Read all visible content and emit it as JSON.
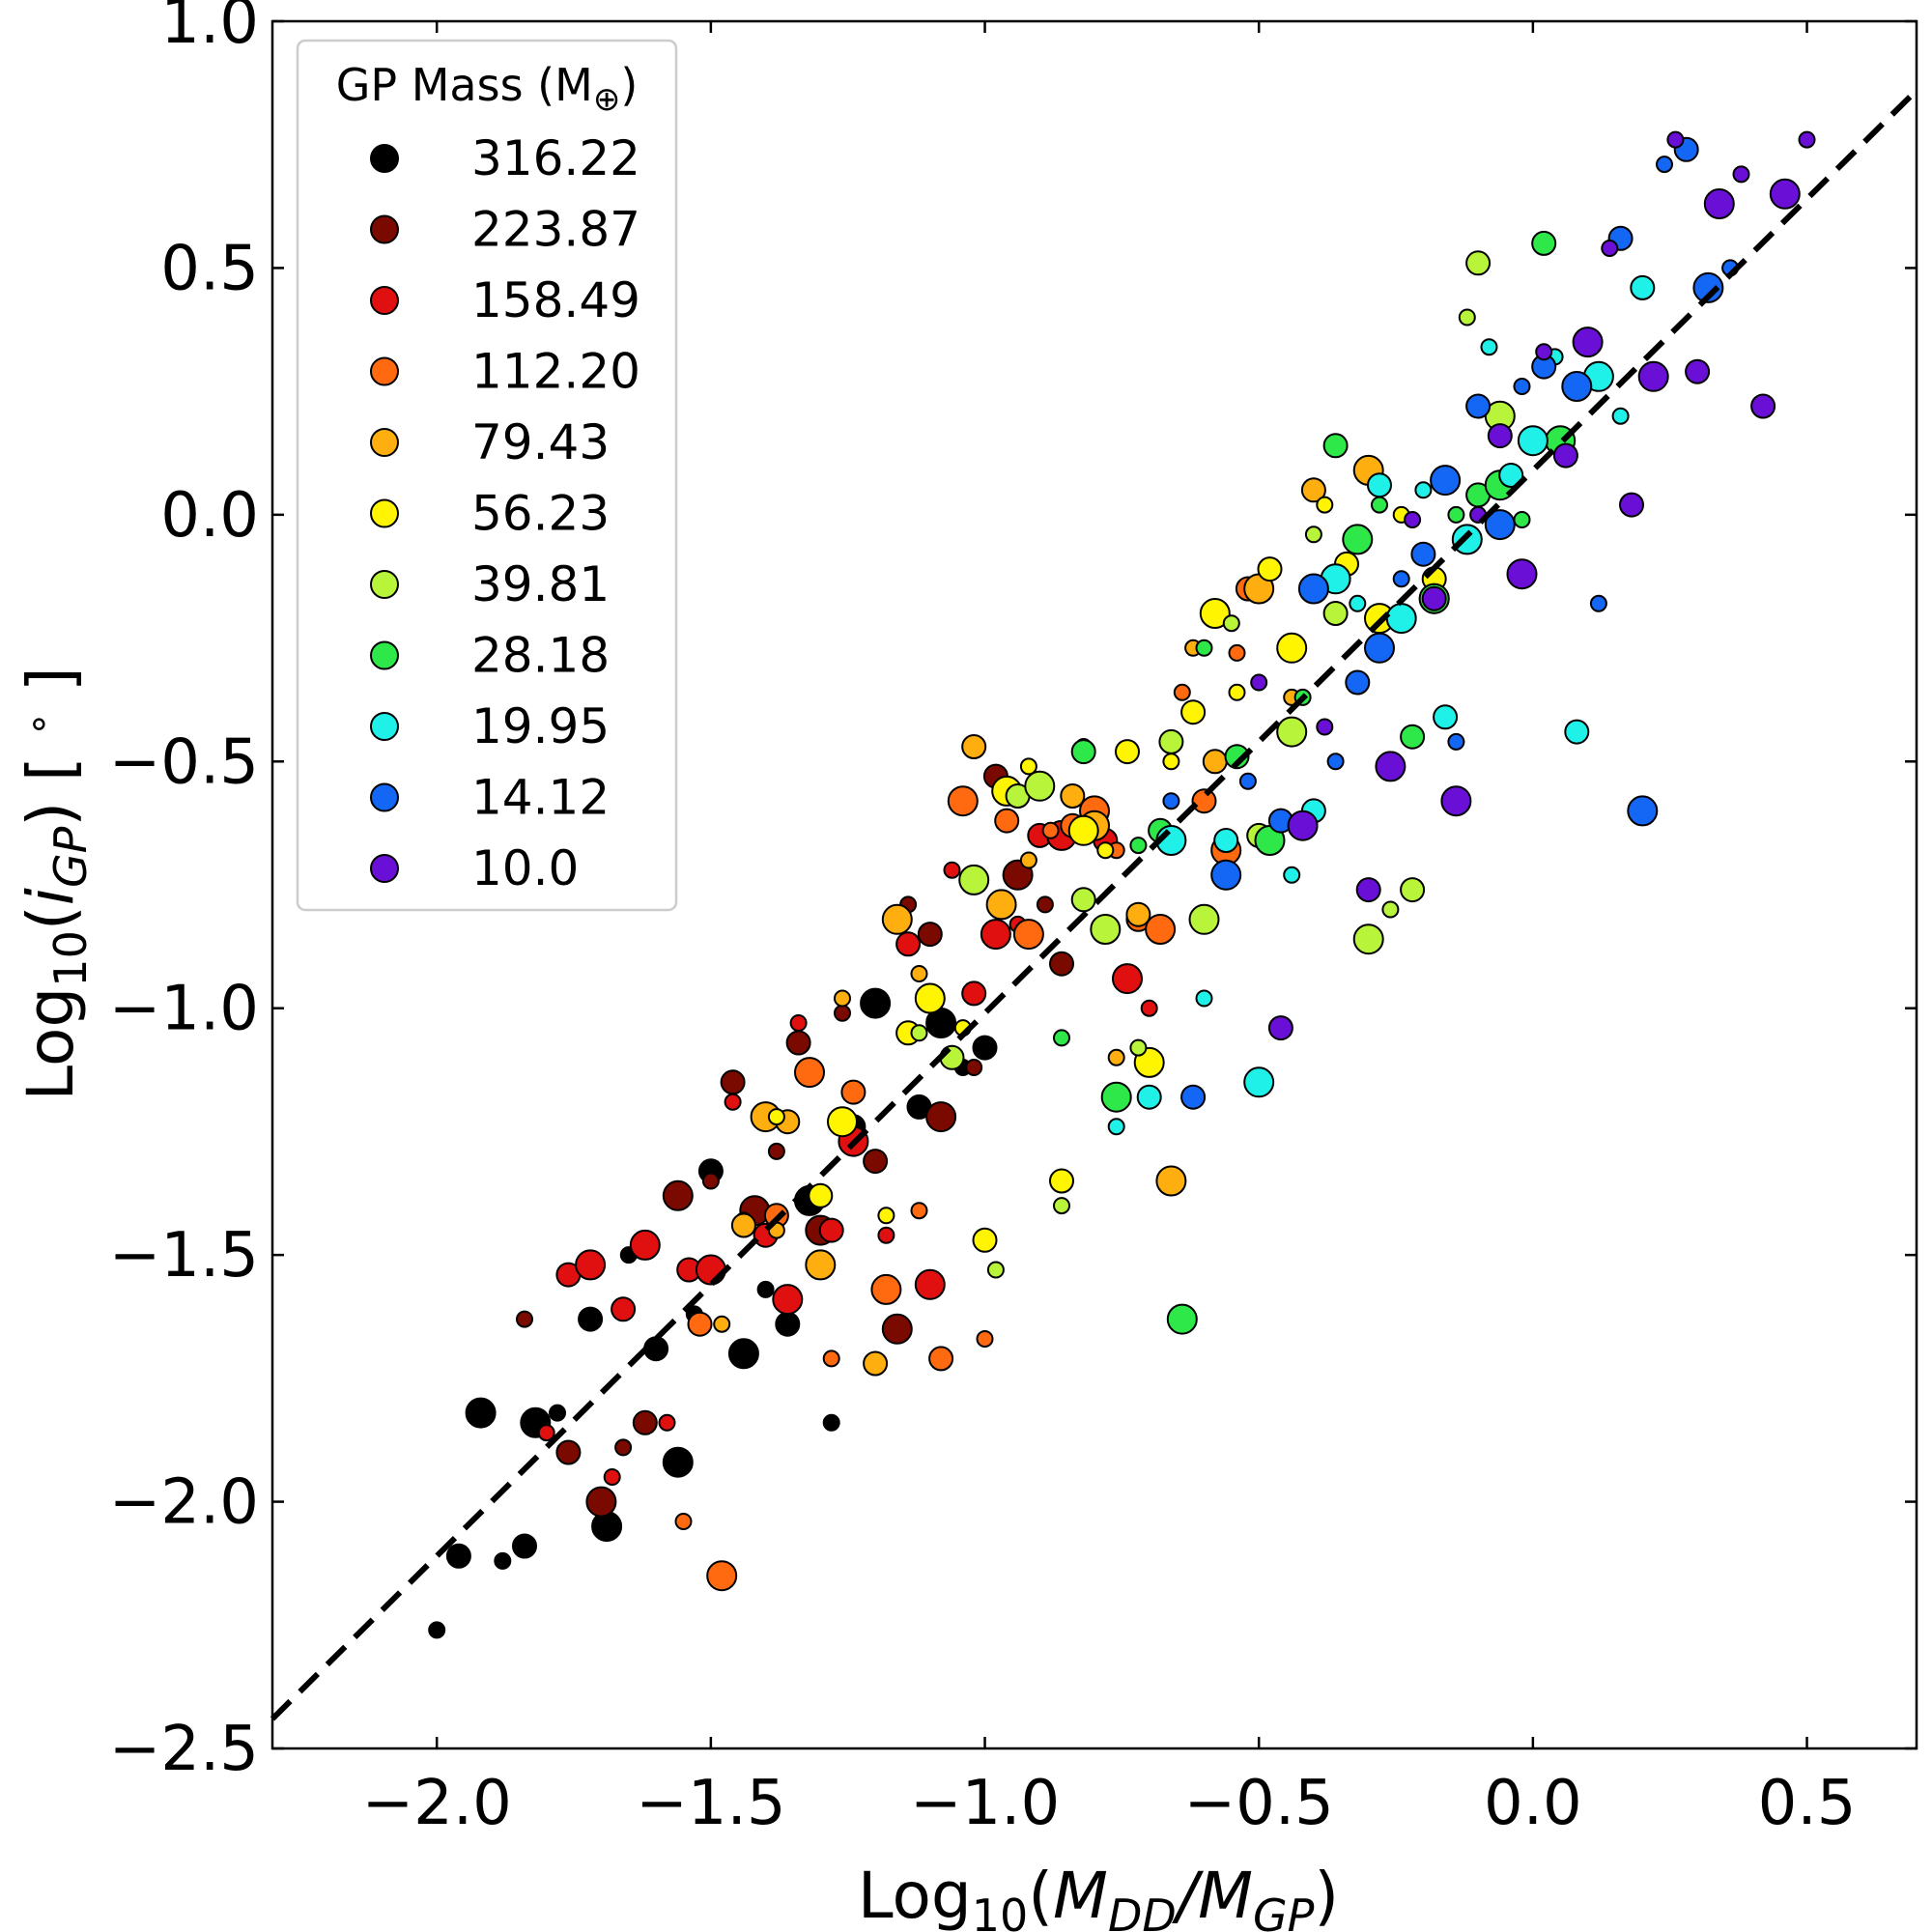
{
  "chart_data": {
    "type": "scatter",
    "xlabel": "Log10(MDD/MGP)",
    "ylabel": "Log10(iGP) [°]",
    "xlim": [
      -2.3,
      0.7
    ],
    "ylim": [
      -2.5,
      1.0
    ],
    "xticks": [
      -2.0,
      -1.5,
      -1.0,
      -0.5,
      0.0,
      0.5
    ],
    "xtick_labels": [
      "−2.0",
      "−1.5",
      "−1.0",
      "−0.5",
      "0.0",
      "0.5"
    ],
    "yticks": [
      -2.5,
      -2.0,
      -1.5,
      -1.0,
      -0.5,
      0.0,
      0.5,
      1.0
    ],
    "ytick_labels": [
      "−2.5",
      "−2.0",
      "−1.5",
      "−1.0",
      "−0.5",
      "0.0",
      "0.5",
      "1.0"
    ],
    "fit_line": {
      "style": "dashed",
      "color": "#000000",
      "x": [
        -2.3,
        0.7
      ],
      "y": [
        -2.44,
        0.86
      ]
    },
    "legend": {
      "title": "GP Mass (M⊕)",
      "placement": "top-left",
      "entries": [
        {
          "label": "316.22",
          "color": "#000000"
        },
        {
          "label": "223.87",
          "color": "#7a0a00"
        },
        {
          "label": "158.49",
          "color": "#e01010"
        },
        {
          "label": "112.20",
          "color": "#ff6a10"
        },
        {
          "label": "79.43",
          "color": "#ffae10"
        },
        {
          "label": "56.23",
          "color": "#fff500"
        },
        {
          "label": "39.81",
          "color": "#b8f53a"
        },
        {
          "label": "28.18",
          "color": "#2ee84a"
        },
        {
          "label": "19.95",
          "color": "#1ff0e8"
        },
        {
          "label": "14.12",
          "color": "#1466f5"
        },
        {
          "label": "10.0",
          "color": "#6a0fd6"
        }
      ]
    },
    "series": [
      {
        "name": "316.22",
        "points": [
          [
            -2.0,
            -2.26
          ],
          [
            -1.96,
            -2.11
          ],
          [
            -1.92,
            -1.82
          ],
          [
            -1.88,
            -2.12
          ],
          [
            -1.84,
            -2.09
          ],
          [
            -1.82,
            -1.84
          ],
          [
            -1.78,
            -1.82
          ],
          [
            -1.72,
            -1.63
          ],
          [
            -1.69,
            -2.05
          ],
          [
            -1.65,
            -1.5
          ],
          [
            -1.6,
            -1.69
          ],
          [
            -1.56,
            -1.92
          ],
          [
            -1.53,
            -1.62
          ],
          [
            -1.5,
            -1.33
          ],
          [
            -1.44,
            -1.7
          ],
          [
            -1.4,
            -1.57
          ],
          [
            -1.36,
            -1.64
          ],
          [
            -1.32,
            -1.39
          ],
          [
            -1.28,
            -1.84
          ],
          [
            -1.24,
            -1.24
          ],
          [
            -1.2,
            -0.99
          ],
          [
            -1.16,
            -0.81
          ],
          [
            -1.12,
            -1.2
          ],
          [
            -1.08,
            -1.03
          ],
          [
            -1.04,
            -1.12
          ],
          [
            -1.0,
            -1.08
          ]
        ]
      },
      {
        "name": "223.87",
        "points": [
          [
            -1.84,
            -1.63
          ],
          [
            -1.76,
            -1.9
          ],
          [
            -1.7,
            -2.0
          ],
          [
            -1.66,
            -1.89
          ],
          [
            -1.62,
            -1.84
          ],
          [
            -1.56,
            -1.38
          ],
          [
            -1.5,
            -1.35
          ],
          [
            -1.46,
            -1.15
          ],
          [
            -1.42,
            -1.41
          ],
          [
            -1.38,
            -1.29
          ],
          [
            -1.34,
            -1.07
          ],
          [
            -1.3,
            -1.45
          ],
          [
            -1.26,
            -1.01
          ],
          [
            -1.2,
            -1.31
          ],
          [
            -1.16,
            -1.65
          ],
          [
            -1.14,
            -0.79
          ],
          [
            -1.1,
            -0.85
          ],
          [
            -1.08,
            -1.22
          ],
          [
            -1.02,
            -1.12
          ],
          [
            -0.98,
            -0.53
          ],
          [
            -0.94,
            -0.73
          ],
          [
            -0.89,
            -0.79
          ],
          [
            -0.86,
            -0.91
          ]
        ]
      },
      {
        "name": "158.49",
        "points": [
          [
            -1.8,
            -1.86
          ],
          [
            -1.76,
            -1.54
          ],
          [
            -1.72,
            -1.52
          ],
          [
            -1.68,
            -1.95
          ],
          [
            -1.66,
            -1.61
          ],
          [
            -1.62,
            -1.48
          ],
          [
            -1.58,
            -1.84
          ],
          [
            -1.54,
            -1.53
          ],
          [
            -1.5,
            -1.53
          ],
          [
            -1.46,
            -1.19
          ],
          [
            -1.4,
            -1.46
          ],
          [
            -1.36,
            -1.59
          ],
          [
            -1.34,
            -1.03
          ],
          [
            -1.28,
            -1.45
          ],
          [
            -1.24,
            -1.27
          ],
          [
            -1.18,
            -1.46
          ],
          [
            -1.14,
            -0.87
          ],
          [
            -1.1,
            -1.56
          ],
          [
            -1.06,
            -0.72
          ],
          [
            -1.02,
            -0.97
          ],
          [
            -0.98,
            -0.85
          ],
          [
            -0.94,
            -0.83
          ],
          [
            -0.9,
            -0.65
          ],
          [
            -0.86,
            -0.65
          ],
          [
            -0.82,
            -0.47
          ],
          [
            -0.78,
            -0.66
          ],
          [
            -0.74,
            -0.94
          ],
          [
            -0.7,
            -1.0
          ]
        ]
      },
      {
        "name": "112.20",
        "points": [
          [
            -1.55,
            -2.04
          ],
          [
            -1.52,
            -1.64
          ],
          [
            -1.48,
            -2.15
          ],
          [
            -1.44,
            -1.43
          ],
          [
            -1.38,
            -1.42
          ],
          [
            -1.32,
            -1.13
          ],
          [
            -1.28,
            -1.71
          ],
          [
            -1.24,
            -1.17
          ],
          [
            -1.18,
            -1.57
          ],
          [
            -1.12,
            -1.41
          ],
          [
            -1.08,
            -1.71
          ],
          [
            -1.04,
            -0.58
          ],
          [
            -1.0,
            -1.67
          ],
          [
            -0.96,
            -0.62
          ],
          [
            -0.92,
            -0.85
          ],
          [
            -0.88,
            -0.64
          ],
          [
            -0.84,
            -0.63
          ],
          [
            -0.8,
            -0.6
          ],
          [
            -0.76,
            -0.68
          ],
          [
            -0.72,
            -0.82
          ],
          [
            -0.68,
            -0.84
          ],
          [
            -0.64,
            -0.36
          ],
          [
            -0.6,
            -0.58
          ],
          [
            -0.56,
            -0.68
          ],
          [
            -0.54,
            -0.28
          ],
          [
            -0.52,
            -0.15
          ]
        ]
      },
      {
        "name": "79.43",
        "points": [
          [
            -1.48,
            -1.64
          ],
          [
            -1.44,
            -1.44
          ],
          [
            -1.4,
            -1.22
          ],
          [
            -1.38,
            -1.45
          ],
          [
            -1.36,
            -1.23
          ],
          [
            -1.3,
            -1.52
          ],
          [
            -1.26,
            -0.98
          ],
          [
            -1.2,
            -1.72
          ],
          [
            -1.16,
            -0.82
          ],
          [
            -1.12,
            -0.93
          ],
          [
            -1.02,
            -0.47
          ],
          [
            -0.97,
            -0.79
          ],
          [
            -0.92,
            -0.7
          ],
          [
            -0.84,
            -0.57
          ],
          [
            -0.8,
            -0.63
          ],
          [
            -0.76,
            -1.1
          ],
          [
            -0.72,
            -0.81
          ],
          [
            -0.66,
            -1.35
          ],
          [
            -0.62,
            -0.27
          ],
          [
            -0.58,
            -0.5
          ],
          [
            -0.5,
            -0.15
          ],
          [
            -0.44,
            -0.37
          ],
          [
            -0.4,
            0.05
          ],
          [
            -0.3,
            0.09
          ]
        ]
      },
      {
        "name": "56.23",
        "points": [
          [
            -1.38,
            -1.22
          ],
          [
            -1.3,
            -1.38
          ],
          [
            -1.26,
            -1.23
          ],
          [
            -1.18,
            -1.42
          ],
          [
            -1.14,
            -1.05
          ],
          [
            -1.1,
            -0.98
          ],
          [
            -1.04,
            -1.04
          ],
          [
            -1.0,
            -1.47
          ],
          [
            -0.96,
            -0.56
          ],
          [
            -0.92,
            -0.51
          ],
          [
            -0.86,
            -1.35
          ],
          [
            -0.82,
            -0.64
          ],
          [
            -0.78,
            -0.68
          ],
          [
            -0.74,
            -0.48
          ],
          [
            -0.7,
            -1.11
          ],
          [
            -0.66,
            -0.5
          ],
          [
            -0.62,
            -0.4
          ],
          [
            -0.58,
            -0.2
          ],
          [
            -0.54,
            -0.36
          ],
          [
            -0.48,
            -0.11
          ],
          [
            -0.44,
            -0.27
          ],
          [
            -0.38,
            0.02
          ],
          [
            -0.34,
            -0.1
          ],
          [
            -0.28,
            -0.21
          ],
          [
            -0.24,
            0.0
          ],
          [
            -0.18,
            -0.13
          ]
        ]
      },
      {
        "name": "39.81",
        "points": [
          [
            -1.12,
            -1.05
          ],
          [
            -1.06,
            -1.1
          ],
          [
            -1.02,
            -0.74
          ],
          [
            -0.98,
            -1.53
          ],
          [
            -0.94,
            -0.57
          ],
          [
            -0.9,
            -0.55
          ],
          [
            -0.86,
            -1.4
          ],
          [
            -0.82,
            -0.78
          ],
          [
            -0.78,
            -0.84
          ],
          [
            -0.72,
            -1.08
          ],
          [
            -0.66,
            -0.46
          ],
          [
            -0.6,
            -0.82
          ],
          [
            -0.55,
            -0.22
          ],
          [
            -0.5,
            -0.65
          ],
          [
            -0.44,
            -0.44
          ],
          [
            -0.4,
            -0.04
          ],
          [
            -0.36,
            -0.2
          ],
          [
            -0.3,
            -0.86
          ],
          [
            -0.26,
            -0.8
          ],
          [
            -0.22,
            -0.76
          ],
          [
            -0.18,
            -0.17
          ],
          [
            -0.12,
            0.4
          ],
          [
            -0.1,
            0.51
          ],
          [
            -0.06,
            0.2
          ]
        ]
      },
      {
        "name": "28.18",
        "points": [
          [
            -0.86,
            -1.06
          ],
          [
            -0.82,
            -0.48
          ],
          [
            -0.76,
            -1.18
          ],
          [
            -0.72,
            -0.67
          ],
          [
            -0.68,
            -0.64
          ],
          [
            -0.64,
            -1.63
          ],
          [
            -0.6,
            -0.27
          ],
          [
            -0.54,
            -0.49
          ],
          [
            -0.48,
            -0.66
          ],
          [
            -0.42,
            -0.37
          ],
          [
            -0.36,
            0.14
          ],
          [
            -0.32,
            -0.05
          ],
          [
            -0.28,
            0.02
          ],
          [
            -0.22,
            -0.45
          ],
          [
            -0.18,
            -0.17
          ],
          [
            -0.14,
            0.0
          ],
          [
            -0.1,
            0.04
          ],
          [
            -0.06,
            0.06
          ],
          [
            -0.02,
            -0.01
          ],
          [
            0.02,
            0.55
          ],
          [
            0.05,
            0.15
          ]
        ]
      },
      {
        "name": "19.95",
        "points": [
          [
            -0.76,
            -1.24
          ],
          [
            -0.7,
            -1.18
          ],
          [
            -0.66,
            -0.66
          ],
          [
            -0.6,
            -0.98
          ],
          [
            -0.56,
            -0.66
          ],
          [
            -0.5,
            -1.15
          ],
          [
            -0.44,
            -0.73
          ],
          [
            -0.4,
            -0.6
          ],
          [
            -0.36,
            -0.13
          ],
          [
            -0.32,
            -0.18
          ],
          [
            -0.28,
            0.06
          ],
          [
            -0.24,
            -0.21
          ],
          [
            -0.2,
            0.05
          ],
          [
            -0.16,
            -0.41
          ],
          [
            -0.12,
            -0.05
          ],
          [
            -0.08,
            0.34
          ],
          [
            -0.04,
            0.08
          ],
          [
            0.0,
            0.15
          ],
          [
            0.04,
            0.32
          ],
          [
            0.08,
            -0.44
          ],
          [
            0.12,
            0.28
          ],
          [
            0.16,
            0.2
          ],
          [
            0.2,
            0.46
          ]
        ]
      },
      {
        "name": "14.12",
        "points": [
          [
            -0.66,
            -0.58
          ],
          [
            -0.62,
            -1.18
          ],
          [
            -0.56,
            -0.73
          ],
          [
            -0.52,
            -0.54
          ],
          [
            -0.46,
            -0.62
          ],
          [
            -0.4,
            -0.15
          ],
          [
            -0.36,
            -0.5
          ],
          [
            -0.32,
            -0.34
          ],
          [
            -0.28,
            -0.27
          ],
          [
            -0.24,
            -0.13
          ],
          [
            -0.2,
            -0.08
          ],
          [
            -0.16,
            0.07
          ],
          [
            -0.14,
            -0.46
          ],
          [
            -0.1,
            0.22
          ],
          [
            -0.06,
            -0.02
          ],
          [
            -0.02,
            0.26
          ],
          [
            0.02,
            0.3
          ],
          [
            0.08,
            0.26
          ],
          [
            0.12,
            -0.18
          ],
          [
            0.16,
            0.56
          ],
          [
            0.2,
            -0.6
          ],
          [
            0.24,
            0.71
          ],
          [
            0.28,
            0.74
          ],
          [
            0.32,
            0.46
          ],
          [
            0.36,
            0.5
          ]
        ]
      },
      {
        "name": "10.0",
        "points": [
          [
            -0.5,
            -0.34
          ],
          [
            -0.46,
            -1.04
          ],
          [
            -0.42,
            -0.63
          ],
          [
            -0.38,
            -0.43
          ],
          [
            -0.3,
            -0.76
          ],
          [
            -0.26,
            -0.51
          ],
          [
            -0.22,
            -0.01
          ],
          [
            -0.18,
            -0.17
          ],
          [
            -0.14,
            -0.58
          ],
          [
            -0.1,
            0.0
          ],
          [
            -0.06,
            0.16
          ],
          [
            -0.02,
            -0.12
          ],
          [
            0.02,
            0.33
          ],
          [
            0.06,
            0.12
          ],
          [
            0.1,
            0.35
          ],
          [
            0.14,
            0.54
          ],
          [
            0.18,
            0.02
          ],
          [
            0.22,
            0.28
          ],
          [
            0.26,
            0.76
          ],
          [
            0.3,
            0.29
          ],
          [
            0.34,
            0.63
          ],
          [
            0.38,
            0.69
          ],
          [
            0.42,
            0.22
          ],
          [
            0.46,
            0.65
          ],
          [
            0.5,
            0.76
          ]
        ]
      }
    ]
  }
}
